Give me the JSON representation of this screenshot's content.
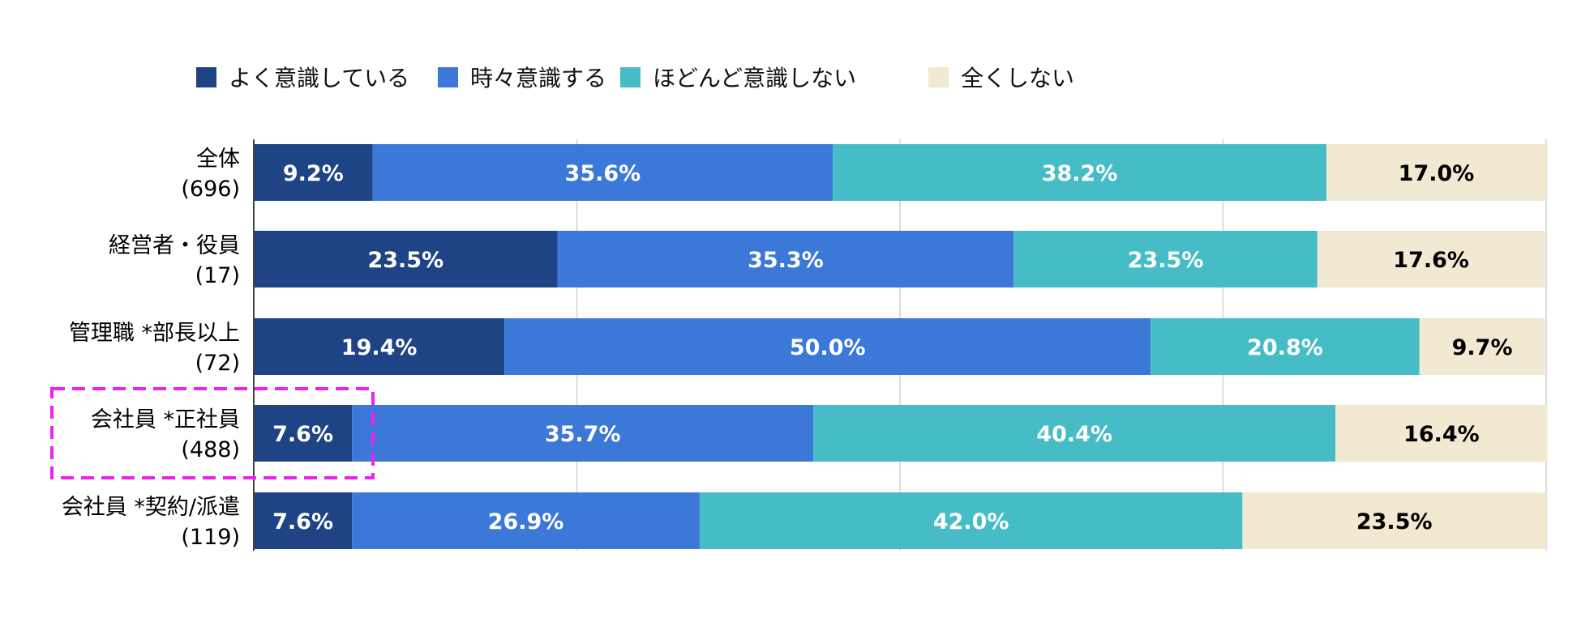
{
  "chart_data": {
    "type": "bar",
    "orientation": "horizontal",
    "stacked": true,
    "title": "",
    "xlabel": "",
    "ylabel": "",
    "xlim": [
      0,
      100
    ],
    "grid": true,
    "legend_position": "top",
    "categories": [
      {
        "name": "全体",
        "n": "(696)"
      },
      {
        "name": "経営者・役員",
        "n": "(17)"
      },
      {
        "name": "管理職 *部長以上",
        "n": "(72)"
      },
      {
        "name": "会社員 *正社員",
        "n": "(488)",
        "highlighted": true
      },
      {
        "name": "会社員 *契約/派遣",
        "n": "(119)"
      }
    ],
    "series": [
      {
        "name": "よく意識している",
        "color": "#1f4485",
        "label_color": "#ffffff",
        "values": [
          9.2,
          23.5,
          19.4,
          7.6,
          7.6
        ],
        "labels": [
          "9.2%",
          "23.5%",
          "19.4%",
          "7.6%",
          "7.6%"
        ]
      },
      {
        "name": "時々意識する",
        "color": "#3c78d8",
        "label_color": "#ffffff",
        "values": [
          35.6,
          35.3,
          50.0,
          35.7,
          26.9
        ],
        "labels": [
          "35.6%",
          "35.3%",
          "50.0%",
          "35.7%",
          "26.9%"
        ]
      },
      {
        "name": "ほどんど意識しない",
        "color": "#46bdc6",
        "label_color": "#ffffff",
        "values": [
          38.2,
          23.5,
          20.8,
          40.4,
          42.0
        ],
        "labels": [
          "38.2%",
          "23.5%",
          "20.8%",
          "40.4%",
          "42.0%"
        ]
      },
      {
        "name": "全くしない",
        "color": "#f1e9d2",
        "label_color": "#000000",
        "values": [
          17.0,
          17.6,
          9.7,
          16.4,
          23.5
        ],
        "labels": [
          "17.0%",
          "17.6%",
          "9.7%",
          "16.4%",
          "23.5%"
        ]
      }
    ],
    "highlight_color": "#ee22ee"
  }
}
